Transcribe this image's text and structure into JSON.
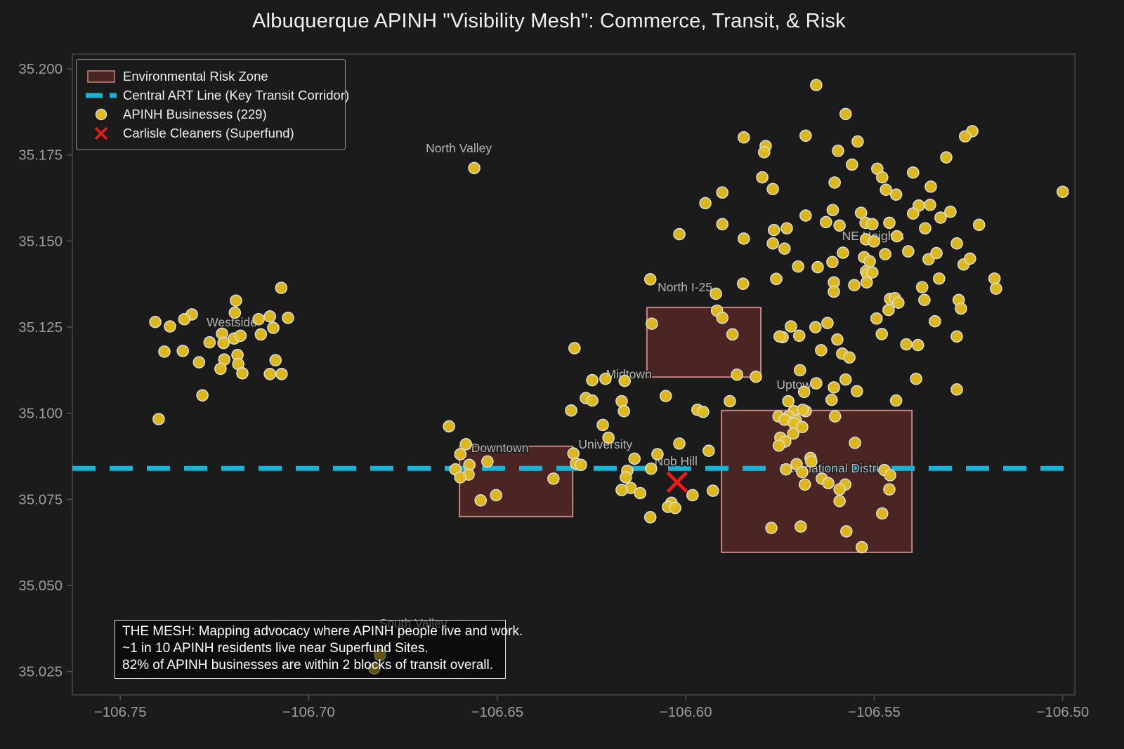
{
  "legend": {
    "items": [
      {
        "key": "risk-zone",
        "label": "Environmental Risk Zone"
      },
      {
        "key": "art-line",
        "label": "Central ART Line (Key Transit Corridor)"
      },
      {
        "key": "businesses",
        "label": "APINH Businesses (229)"
      },
      {
        "key": "superfund",
        "label": "Carlisle Cleaners (Superfund)"
      }
    ]
  },
  "annotation": {
    "lines": [
      "THE MESH: Mapping advocacy where APINH people live and work.",
      "~1 in 10 APINH residents live near Superfund Sites.",
      "82% of APINH businesses are within 2 blocks of transit overall."
    ]
  },
  "chart_data": {
    "type": "scatter",
    "title": "Albuquerque APINH \"Visibility Mesh\": Commerce, Transit, & Risk",
    "axes": {
      "xlabel": "",
      "ylabel": "",
      "grid": false,
      "xlim": [
        -106.7627,
        -106.4968
      ],
      "ylim": [
        35.0182,
        35.2043
      ],
      "xticks": [
        -106.75,
        -106.7,
        -106.65,
        -106.6,
        -106.55,
        -106.5
      ],
      "xtick_labels": [
        "−106.75",
        "−106.70",
        "−106.65",
        "−106.60",
        "−106.55",
        "−106.50"
      ],
      "yticks": [
        35.2,
        35.175,
        35.15,
        35.125,
        35.1,
        35.075,
        35.05,
        35.025
      ],
      "ytick_labels": [
        "35.200",
        "35.175",
        "35.150",
        "35.125",
        "35.100",
        "35.075",
        "35.050",
        "35.025"
      ]
    },
    "colors": {
      "background": "#1b1b1b",
      "spine": "#4d4d4d",
      "tick_label": "#9b9b9b",
      "neighborhood_label": "#b4b4b4",
      "zone_fill": "rgba(178,58,52,0.32)",
      "zone_edge": "rgba(224,150,145,0.85)",
      "art_line": "#19b3d6",
      "business_fill": "#e3bd1a",
      "business_edge": "#d9d9d9",
      "superfund": "#ee1b1b"
    },
    "art_line": {
      "label": "Central ART Line (Key Transit Corridor)",
      "lat": 35.084
    },
    "superfund_site": {
      "name": "Carlisle Cleaners (Superfund)",
      "lon": -106.6023,
      "lat": 35.08
    },
    "risk_zones": [
      {
        "lon_min": -106.6103,
        "lon_max": -106.5801,
        "lat_min": 35.1105,
        "lat_max": 35.1307
      },
      {
        "lon_min": -106.66,
        "lon_max": -106.63,
        "lat_min": 35.07,
        "lat_max": 35.0904
      },
      {
        "lon_min": -106.5905,
        "lon_max": -106.54,
        "lat_min": 35.0596,
        "lat_max": 35.1008
      }
    ],
    "neighborhood_labels": [
      {
        "name": "North Valley",
        "lon": -106.6602,
        "lat": 35.177
      },
      {
        "name": "NE Heights",
        "lon": -106.5503,
        "lat": 35.1515
      },
      {
        "name": "North I-25",
        "lon": -106.6002,
        "lat": 35.1366
      },
      {
        "name": "Westside",
        "lon": -106.7204,
        "lat": 35.1264
      },
      {
        "name": "Midtown",
        "lon": -106.6151,
        "lat": 35.1114
      },
      {
        "name": "Uptown",
        "lon": -106.5704,
        "lat": 35.1083
      },
      {
        "name": "Downtown",
        "lon": -106.6493,
        "lat": 35.09
      },
      {
        "name": "University",
        "lon": -106.6213,
        "lat": 35.091
      },
      {
        "name": "Nob Hill",
        "lon": -106.6026,
        "lat": 35.0861
      },
      {
        "name": "International District",
        "lon": -106.5606,
        "lat": 35.084
      },
      {
        "name": "South Valley",
        "lon": -106.6723,
        "lat": 35.039
      }
    ],
    "businesses": {
      "label": "APINH Businesses (229)",
      "count": 229,
      "points": [
        [
          -106.7073,
          35.1364
        ],
        [
          -106.7193,
          35.1327
        ],
        [
          -106.7196,
          35.1292
        ],
        [
          -106.731,
          35.1287
        ],
        [
          -106.733,
          35.1273
        ],
        [
          -106.7407,
          35.1265
        ],
        [
          -106.7368,
          35.1252
        ],
        [
          -106.7133,
          35.1273
        ],
        [
          -106.7103,
          35.1281
        ],
        [
          -106.7094,
          35.1248
        ],
        [
          -106.7055,
          35.1277
        ],
        [
          -106.7127,
          35.1229
        ],
        [
          -106.723,
          35.1231
        ],
        [
          -106.7263,
          35.1206
        ],
        [
          -106.7226,
          35.1204
        ],
        [
          -106.7198,
          35.1217
        ],
        [
          -106.7181,
          35.1225
        ],
        [
          -106.7383,
          35.1179
        ],
        [
          -106.7334,
          35.1181
        ],
        [
          -106.7291,
          35.1148
        ],
        [
          -106.7224,
          35.1156
        ],
        [
          -106.7234,
          35.1129
        ],
        [
          -106.7189,
          35.1169
        ],
        [
          -106.7187,
          35.1143
        ],
        [
          -106.7176,
          35.1116
        ],
        [
          -106.7088,
          35.1154
        ],
        [
          -106.7103,
          35.1114
        ],
        [
          -106.7072,
          35.1114
        ],
        [
          -106.7282,
          35.1052
        ],
        [
          -106.7398,
          35.0983
        ],
        [
          -106.6561,
          35.1712
        ],
        [
          -106.6811,
          35.0298
        ],
        [
          -106.6826,
          35.0259
        ],
        [
          -106.5654,
          35.1953
        ],
        [
          -106.5576,
          35.1869
        ],
        [
          -106.5682,
          35.1806
        ],
        [
          -106.5846,
          35.1801
        ],
        [
          -106.5788,
          35.1776
        ],
        [
          -106.5792,
          35.1758
        ],
        [
          -106.5544,
          35.1789
        ],
        [
          -106.5596,
          35.1762
        ],
        [
          -106.5559,
          35.1722
        ],
        [
          -106.5492,
          35.171
        ],
        [
          -106.5479,
          35.1685
        ],
        [
          -106.5469,
          35.1649
        ],
        [
          -106.5797,
          35.1685
        ],
        [
          -106.5769,
          35.1651
        ],
        [
          -106.5605,
          35.167
        ],
        [
          -106.5903,
          35.1641
        ],
        [
          -106.5948,
          35.161
        ],
        [
          -106.5903,
          35.1549
        ],
        [
          -106.5682,
          35.1574
        ],
        [
          -106.5628,
          35.1555
        ],
        [
          -106.5592,
          35.1545
        ],
        [
          -106.5535,
          35.1582
        ],
        [
          -106.5523,
          35.1553
        ],
        [
          -106.5505,
          35.1549
        ],
        [
          -106.6017,
          35.152
        ],
        [
          -106.5766,
          35.1532
        ],
        [
          -106.5732,
          35.1537
        ],
        [
          -106.5846,
          35.1507
        ],
        [
          -106.5769,
          35.1493
        ],
        [
          -106.546,
          35.1553
        ],
        [
          -106.524,
          35.1819
        ],
        [
          -106.5259,
          35.1804
        ],
        [
          -106.5309,
          35.1743
        ],
        [
          -106.5397,
          35.1699
        ],
        [
          -106.535,
          35.1658
        ],
        [
          -106.5442,
          35.1635
        ],
        [
          -106.5382,
          35.1603
        ],
        [
          -106.5352,
          35.1605
        ],
        [
          -106.5397,
          35.158
        ],
        [
          -106.5298,
          35.1585
        ],
        [
          -106.5324,
          35.1568
        ],
        [
          -106.5365,
          35.1537
        ],
        [
          -106.544,
          35.1514
        ],
        [
          -106.5222,
          35.1547
        ],
        [
          -106.5281,
          35.1493
        ],
        [
          -106.5,
          35.1643
        ],
        [
          -106.5738,
          35.1478
        ],
        [
          -106.5522,
          35.1505
        ],
        [
          -106.5501,
          35.1499
        ],
        [
          -106.5583,
          35.1466
        ],
        [
          -106.5471,
          35.1462
        ],
        [
          -106.541,
          35.147
        ],
        [
          -106.5527,
          35.1453
        ],
        [
          -106.5512,
          35.1441
        ],
        [
          -106.5356,
          35.1447
        ],
        [
          -106.5263,
          35.1432
        ],
        [
          -106.5246,
          35.1449
        ],
        [
          -106.5702,
          35.1426
        ],
        [
          -106.565,
          35.1424
        ],
        [
          -106.5611,
          35.1439
        ],
        [
          -106.5522,
          35.1412
        ],
        [
          -106.5518,
          35.1403
        ],
        [
          -106.5505,
          35.1409
        ],
        [
          -106.552,
          35.138
        ],
        [
          -106.5553,
          35.1372
        ],
        [
          -106.5607,
          35.138
        ],
        [
          -106.5607,
          35.1353
        ],
        [
          -106.5328,
          35.1391
        ],
        [
          -106.5181,
          35.1391
        ],
        [
          -106.5177,
          35.1362
        ],
        [
          -106.5373,
          35.1366
        ],
        [
          -106.5458,
          35.1332
        ],
        [
          -106.5445,
          35.1334
        ],
        [
          -106.5436,
          35.1321
        ],
        [
          -106.5462,
          35.13
        ],
        [
          -106.5367,
          35.1329
        ],
        [
          -106.5276,
          35.1329
        ],
        [
          -106.527,
          35.1304
        ],
        [
          -106.5494,
          35.1275
        ],
        [
          -106.5339,
          35.1267
        ],
        [
          -106.5721,
          35.1252
        ],
        [
          -106.5656,
          35.125
        ],
        [
          -106.5624,
          35.1262
        ],
        [
          -106.5743,
          35.1221
        ],
        [
          -106.5699,
          35.1225
        ],
        [
          -106.5598,
          35.1214
        ],
        [
          -106.5641,
          35.1183
        ],
        [
          -106.5585,
          35.1173
        ],
        [
          -106.5566,
          35.1162
        ],
        [
          -106.5281,
          35.1223
        ],
        [
          -106.5384,
          35.1198
        ],
        [
          -106.5697,
          35.1125
        ],
        [
          -106.5654,
          35.1087
        ],
        [
          -106.5686,
          35.1062
        ],
        [
          -106.5576,
          35.1098
        ],
        [
          -106.5607,
          35.1075
        ],
        [
          -106.5546,
          35.1064
        ],
        [
          -106.5389,
          35.11
        ],
        [
          -106.5728,
          35.1035
        ],
        [
          -106.5613,
          35.1039
        ],
        [
          -106.5442,
          35.1037
        ],
        [
          -106.5281,
          35.1069
        ],
        [
          -106.6094,
          35.1389
        ],
        [
          -106.5848,
          35.1376
        ],
        [
          -106.592,
          35.1347
        ],
        [
          -106.5917,
          35.1298
        ],
        [
          -106.5903,
          35.1277
        ],
        [
          -106.5876,
          35.1229
        ],
        [
          -106.609,
          35.126
        ],
        [
          -106.6295,
          35.1189
        ],
        [
          -106.5864,
          35.1112
        ],
        [
          -106.5814,
          35.1106
        ],
        [
          -106.6248,
          35.1096
        ],
        [
          -106.6213,
          35.11
        ],
        [
          -106.6162,
          35.1094
        ],
        [
          -106.6265,
          35.1044
        ],
        [
          -106.6248,
          35.1037
        ],
        [
          -106.617,
          35.1035
        ],
        [
          -106.6304,
          35.1008
        ],
        [
          -106.6164,
          35.1006
        ],
        [
          -106.6053,
          35.105
        ],
        [
          -106.5883,
          35.1035
        ],
        [
          -106.5969,
          35.101
        ],
        [
          -106.5954,
          35.1004
        ],
        [
          -106.622,
          35.0966
        ],
        [
          -106.6205,
          35.0929
        ],
        [
          -106.5754,
          35.0991
        ],
        [
          -106.5751,
          35.1223
        ],
        [
          -106.6017,
          35.0912
        ],
        [
          -106.5939,
          35.0891
        ],
        [
          -106.6075,
          35.0881
        ],
        [
          -106.6136,
          35.0868
        ],
        [
          -106.6092,
          35.0839
        ],
        [
          -106.6155,
          35.0833
        ],
        [
          -106.6159,
          35.0814
        ],
        [
          -106.6146,
          35.0783
        ],
        [
          -106.617,
          35.0777
        ],
        [
          -106.6121,
          35.0768
        ],
        [
          -106.5982,
          35.0762
        ],
        [
          -106.5928,
          35.0775
        ],
        [
          -106.6038,
          35.074
        ],
        [
          -106.6047,
          35.0728
        ],
        [
          -106.6028,
          35.0725
        ],
        [
          -106.6094,
          35.0698
        ],
        [
          -106.5773,
          35.0667
        ],
        [
          -106.5695,
          35.0671
        ],
        [
          -106.6628,
          35.0962
        ],
        [
          -106.6583,
          35.091
        ],
        [
          -106.6598,
          35.0881
        ],
        [
          -106.6574,
          35.085
        ],
        [
          -106.6611,
          35.0837
        ],
        [
          -106.6576,
          35.0822
        ],
        [
          -106.6598,
          35.0814
        ],
        [
          -106.6526,
          35.086
        ],
        [
          -106.6298,
          35.0883
        ],
        [
          -106.6291,
          35.0854
        ],
        [
          -106.6278,
          35.085
        ],
        [
          -106.6351,
          35.081
        ],
        [
          -106.6544,
          35.0747
        ],
        [
          -106.6503,
          35.0762
        ],
        [
          -106.5713,
          35.1006
        ],
        [
          -106.5682,
          35.1006
        ],
        [
          -106.5727,
          35.0991
        ],
        [
          -106.5738,
          35.0981
        ],
        [
          -106.5708,
          35.0979
        ],
        [
          -106.5713,
          35.0971
        ],
        [
          -106.5691,
          35.096
        ],
        [
          -106.5715,
          35.0941
        ],
        [
          -106.5604,
          35.0991
        ],
        [
          -106.5749,
          35.0929
        ],
        [
          -106.5736,
          35.0918
        ],
        [
          -106.5753,
          35.0906
        ],
        [
          -106.5551,
          35.0914
        ],
        [
          -106.5669,
          35.087
        ],
        [
          -106.5667,
          35.086
        ],
        [
          -106.5706,
          35.0852
        ],
        [
          -106.5734,
          35.0837
        ],
        [
          -106.5691,
          35.0829
        ],
        [
          -106.5684,
          35.0793
        ],
        [
          -106.5639,
          35.081
        ],
        [
          -106.5622,
          35.0797
        ],
        [
          -106.5577,
          35.0793
        ],
        [
          -106.5592,
          35.0779
        ],
        [
          -106.5592,
          35.0745
        ],
        [
          -106.5473,
          35.0835
        ],
        [
          -106.5458,
          35.082
        ],
        [
          -106.546,
          35.0779
        ],
        [
          -106.5479,
          35.0709
        ],
        [
          -106.5574,
          35.0657
        ],
        [
          -106.5533,
          35.0611
        ],
        [
          -106.548,
          35.123
        ],
        [
          -106.5335,
          35.1465
        ],
        [
          -106.561,
          35.159
        ],
        [
          -106.5415,
          35.12
        ],
        [
          -106.576,
          35.139
        ],
        [
          -106.569,
          35.101
        ]
      ]
    }
  }
}
